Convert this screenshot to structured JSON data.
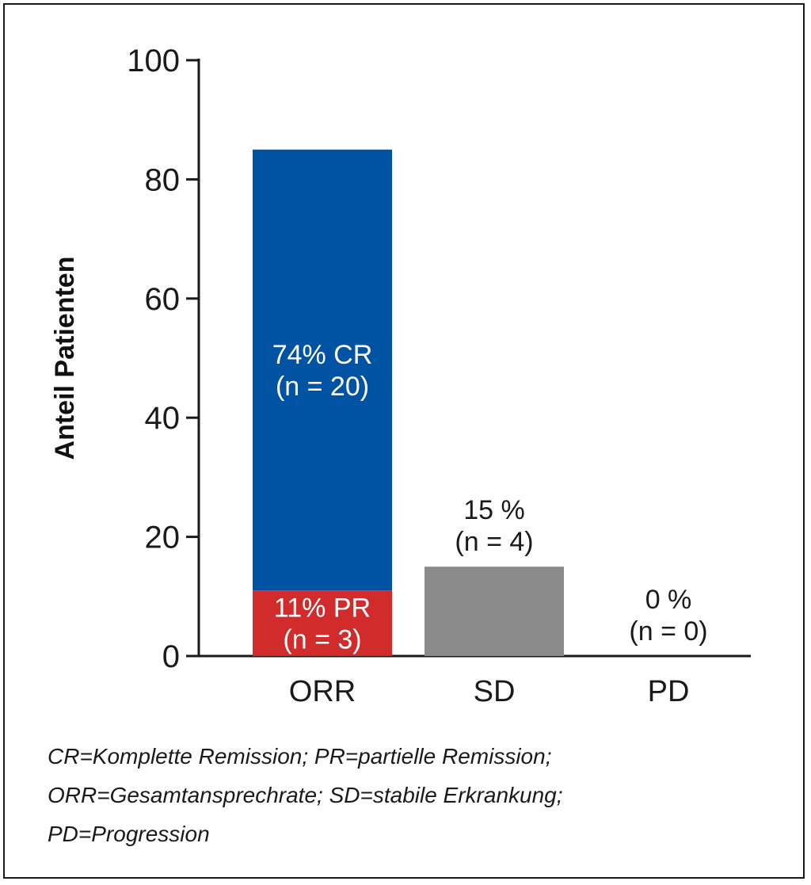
{
  "chart_data": {
    "type": "bar",
    "stacked": true,
    "categories": [
      "ORR",
      "SD",
      "PD"
    ],
    "ylabel": "Anteil Patienten",
    "ylim": [
      0,
      100
    ],
    "yticks": [
      0,
      20,
      40,
      60,
      80,
      100
    ],
    "colors": {
      "cr": "#0052a3",
      "pr": "#d12b2b",
      "sd": "#8a8a8a"
    },
    "segments": [
      {
        "category": "ORR",
        "value": 11,
        "color": "#d12b2b",
        "label": [
          "11% PR",
          "(n = 3)"
        ],
        "label_style": "inside"
      },
      {
        "category": "ORR",
        "value": 74,
        "color": "#0052a3",
        "label": [
          "74% CR",
          "(n = 20)"
        ],
        "label_style": "inside"
      },
      {
        "category": "SD",
        "value": 15,
        "color": "#8a8a8a",
        "label": [
          "15 %",
          "(n = 4)"
        ],
        "label_style": "above"
      },
      {
        "category": "PD",
        "value": 0,
        "color": "#8a8a8a",
        "label": [
          "0 %",
          "(n = 0)"
        ],
        "label_style": "above"
      }
    ]
  },
  "footnote": [
    "CR=Komplette Remission; PR=partielle Remission;",
    "ORR=Gesamtansprechrate; SD=stabile Erkrankung;",
    "PD=Progression"
  ]
}
